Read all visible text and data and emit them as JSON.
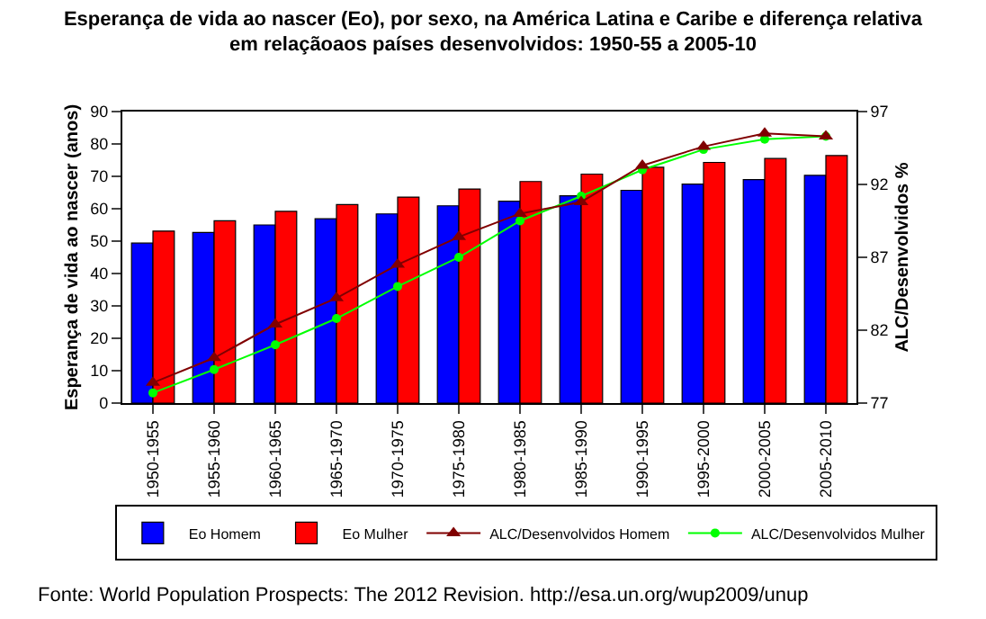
{
  "chart_data": {
    "type": "bar",
    "title": "Esperança de vida ao nascer (Eo), por sexo, na América Latina e Caribe e diferença relativa\nem relaçãoaos países desenvolvidos: 1950-55 a 2005-10",
    "ylabel": "Esperança de vida ao nascer (anos)",
    "y2label": "ALC/Desenvolvidos %",
    "categories": [
      "1950-1955",
      "1955-1960",
      "1960-1965",
      "1965-1970",
      "1970-1975",
      "1975-1980",
      "1980-1985",
      "1985-1990",
      "1990-1995",
      "1995-2000",
      "2000-2005",
      "2005-2010"
    ],
    "series": [
      {
        "name": "Eo Homem",
        "color": "#0000ff",
        "values": [
          49.4,
          52.7,
          55.0,
          56.9,
          58.4,
          60.9,
          62.3,
          64.0,
          65.7,
          67.6,
          69.0,
          70.3
        ]
      },
      {
        "name": "Eo Mulher",
        "color": "#ff0000",
        "values": [
          53.1,
          56.3,
          59.2,
          61.3,
          63.6,
          66.1,
          68.4,
          70.7,
          72.8,
          74.3,
          75.5,
          76.4
        ]
      },
      {
        "name": "ALC/Desenvolvidos Homem",
        "type": "line",
        "axis": "y2",
        "marker": "triangle",
        "color": "#800000",
        "values": [
          78.4,
          80.1,
          82.4,
          84.2,
          86.5,
          88.4,
          90.0,
          90.8,
          93.3,
          94.6,
          95.5,
          95.3
        ]
      },
      {
        "name": "ALC/Desenvolvidos Mulher",
        "type": "line",
        "axis": "y2",
        "marker": "circle",
        "color": "#00ff00",
        "values": [
          77.7,
          79.3,
          81.0,
          82.8,
          85.0,
          87.0,
          89.5,
          91.2,
          93.0,
          94.4,
          95.1,
          95.3
        ]
      }
    ],
    "ylim": [
      0,
      90
    ],
    "yticks": [
      0,
      10,
      20,
      30,
      40,
      50,
      60,
      70,
      80,
      90
    ],
    "y2lim": [
      77,
      97
    ],
    "y2ticks": [
      77,
      82,
      87,
      92,
      97
    ],
    "grid": false,
    "legend": "bottom",
    "annotations": [
      "Fonte: World Population Prospects: The 2012 Revision. http://esa.un.org/wup2009/unup"
    ]
  }
}
